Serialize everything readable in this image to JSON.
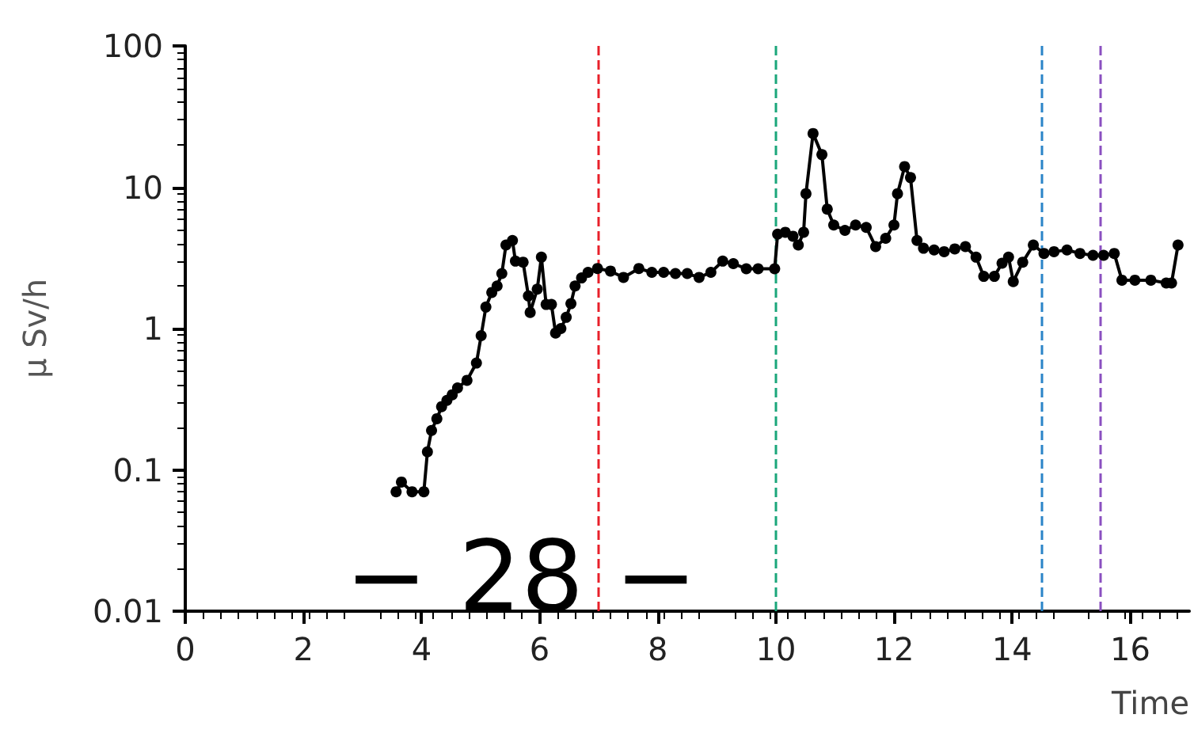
{
  "chart_data": {
    "type": "line",
    "xlabel": "Time",
    "ylabel": "μ Sv/h",
    "log": "y",
    "xlim": [
      0,
      17
    ],
    "xticks": [
      0,
      2,
      4,
      6,
      8,
      10,
      12,
      14,
      16
    ],
    "ylim": [
      0.01,
      100
    ],
    "yticks": [
      0.01,
      0.1,
      1,
      10,
      100
    ],
    "grid": false,
    "marker": "circle",
    "line_style": "solid",
    "x": [
      3.57,
      3.66,
      3.84,
      4.04,
      4.1,
      4.17,
      4.26,
      4.34,
      4.43,
      4.52,
      4.61,
      4.77,
      4.93,
      5.01,
      5.09,
      5.19,
      5.28,
      5.36,
      5.43,
      5.54,
      5.59,
      5.72,
      5.81,
      5.84,
      5.96,
      6.03,
      6.11,
      6.2,
      6.27,
      6.36,
      6.45,
      6.53,
      6.6,
      6.71,
      6.82,
      6.98,
      7.2,
      7.42,
      7.68,
      7.9,
      8.1,
      8.3,
      8.5,
      8.7,
      8.9,
      9.1,
      9.28,
      9.5,
      9.7,
      9.98,
      10.03,
      10.16,
      10.29,
      10.38,
      10.47,
      10.51,
      10.63,
      10.78,
      10.87,
      10.98,
      11.17,
      11.35,
      11.53,
      11.69,
      11.86,
      12.0,
      12.06,
      12.18,
      12.28,
      12.39,
      12.5,
      12.68,
      12.85,
      13.03,
      13.21,
      13.39,
      13.52,
      13.7,
      13.83,
      13.94,
      14.02,
      14.18,
      14.36,
      14.54,
      14.71,
      14.93,
      15.15,
      15.37,
      15.55,
      15.73,
      15.86,
      16.08,
      16.35,
      16.61,
      16.7,
      16.81
    ],
    "series": [
      {
        "color": "#000000",
        "values": [
          0.07,
          0.082,
          0.07,
          0.07,
          0.134,
          0.19,
          0.23,
          0.28,
          0.31,
          0.34,
          0.38,
          0.43,
          0.57,
          0.89,
          1.42,
          1.8,
          2.0,
          2.45,
          3.9,
          4.2,
          3.0,
          2.95,
          1.7,
          1.3,
          1.9,
          3.2,
          1.48,
          1.48,
          0.93,
          1.0,
          1.2,
          1.5,
          2.0,
          2.28,
          2.5,
          2.66,
          2.55,
          2.3,
          2.66,
          2.5,
          2.5,
          2.45,
          2.45,
          2.3,
          2.5,
          3.0,
          2.88,
          2.65,
          2.65,
          2.65,
          4.66,
          4.8,
          4.5,
          3.9,
          4.8,
          9.0,
          24,
          17,
          7.0,
          5.4,
          4.95,
          5.4,
          5.2,
          3.8,
          4.35,
          5.4,
          9.0,
          14,
          11.7,
          4.2,
          3.7,
          3.6,
          3.5,
          3.66,
          3.8,
          3.2,
          2.34,
          2.34,
          2.9,
          3.2,
          2.15,
          2.95,
          3.9,
          3.4,
          3.5,
          3.6,
          3.4,
          3.3,
          3.3,
          3.4,
          2.2,
          2.2,
          2.2,
          2.1,
          2.1,
          3.9
        ]
      }
    ],
    "ref_lines": [
      {
        "axis": "x",
        "value": 7,
        "color": "#e8202a",
        "line_style": "dashed"
      },
      {
        "axis": "x",
        "value": 10,
        "color": "#1aa67a",
        "line_style": "dashed"
      },
      {
        "axis": "x",
        "value": 14.5,
        "color": "#2a84c8",
        "line_style": "dashed"
      },
      {
        "axis": "x",
        "value": 15.5,
        "color": "#8a4fc0",
        "line_style": "dashed"
      }
    ],
    "annotations": [
      "− 28 −"
    ]
  }
}
